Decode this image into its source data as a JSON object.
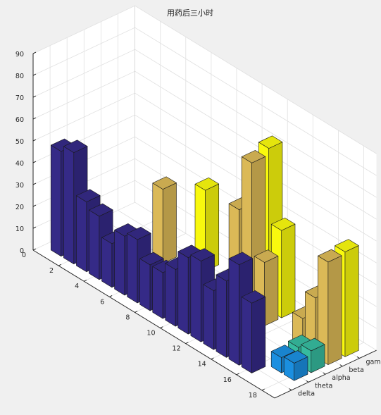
{
  "chart_data": {
    "type": "bar3",
    "title": "用药后三小时",
    "x": [
      1,
      2,
      3,
      4,
      5,
      6,
      7,
      8,
      9,
      10,
      11,
      12,
      13,
      14,
      15,
      16,
      17,
      18
    ],
    "y_categories": [
      "delta",
      "theta",
      "alpha",
      "beta",
      "gamma"
    ],
    "zlim": [
      0,
      90
    ],
    "z_ticks": [
      0,
      10,
      20,
      30,
      40,
      50,
      60,
      70,
      80,
      90
    ],
    "x_ticks": [
      2,
      4,
      6,
      8,
      10,
      12,
      14,
      16,
      18
    ],
    "x_tick_labels": [
      "2",
      "4",
      "6",
      "8",
      "10",
      "12",
      "14",
      "16",
      "18"
    ],
    "x_extra_label": "0",
    "grid": true,
    "colors": {
      "delta": "#352a87",
      "theta": "#1b8fe0",
      "alpha": "#36bb9f",
      "beta": "#dbb957",
      "gamma": "#f9f90e",
      "background": "#f0f0f0",
      "axes_background": "#ffffff"
    },
    "series": [
      {
        "values": [
          48,
          51,
          32,
          29,
          20,
          27,
          29,
          21,
          21,
          26,
          35,
          37,
          27,
          35,
          46,
          32,
          0,
          0
        ]
      },
      {
        "values": [
          0,
          0,
          0,
          0,
          0,
          0,
          0,
          0,
          0,
          0,
          0,
          0,
          0,
          0,
          0,
          0,
          7,
          8
        ]
      },
      {
        "values": [
          0,
          0,
          0,
          0,
          0,
          0,
          0,
          6,
          0,
          0,
          0,
          0,
          0,
          0,
          0,
          0,
          8,
          10
        ]
      },
      {
        "values": [
          0,
          0,
          0,
          0,
          34,
          0,
          0,
          0,
          0,
          0,
          46,
          71,
          29,
          0,
          0,
          14,
          27,
          47
        ]
      },
      {
        "values": [
          0,
          0,
          0,
          0,
          0,
          0,
          37,
          0,
          0,
          0,
          0,
          74,
          40,
          0,
          0,
          0,
          30,
          48
        ]
      }
    ]
  }
}
